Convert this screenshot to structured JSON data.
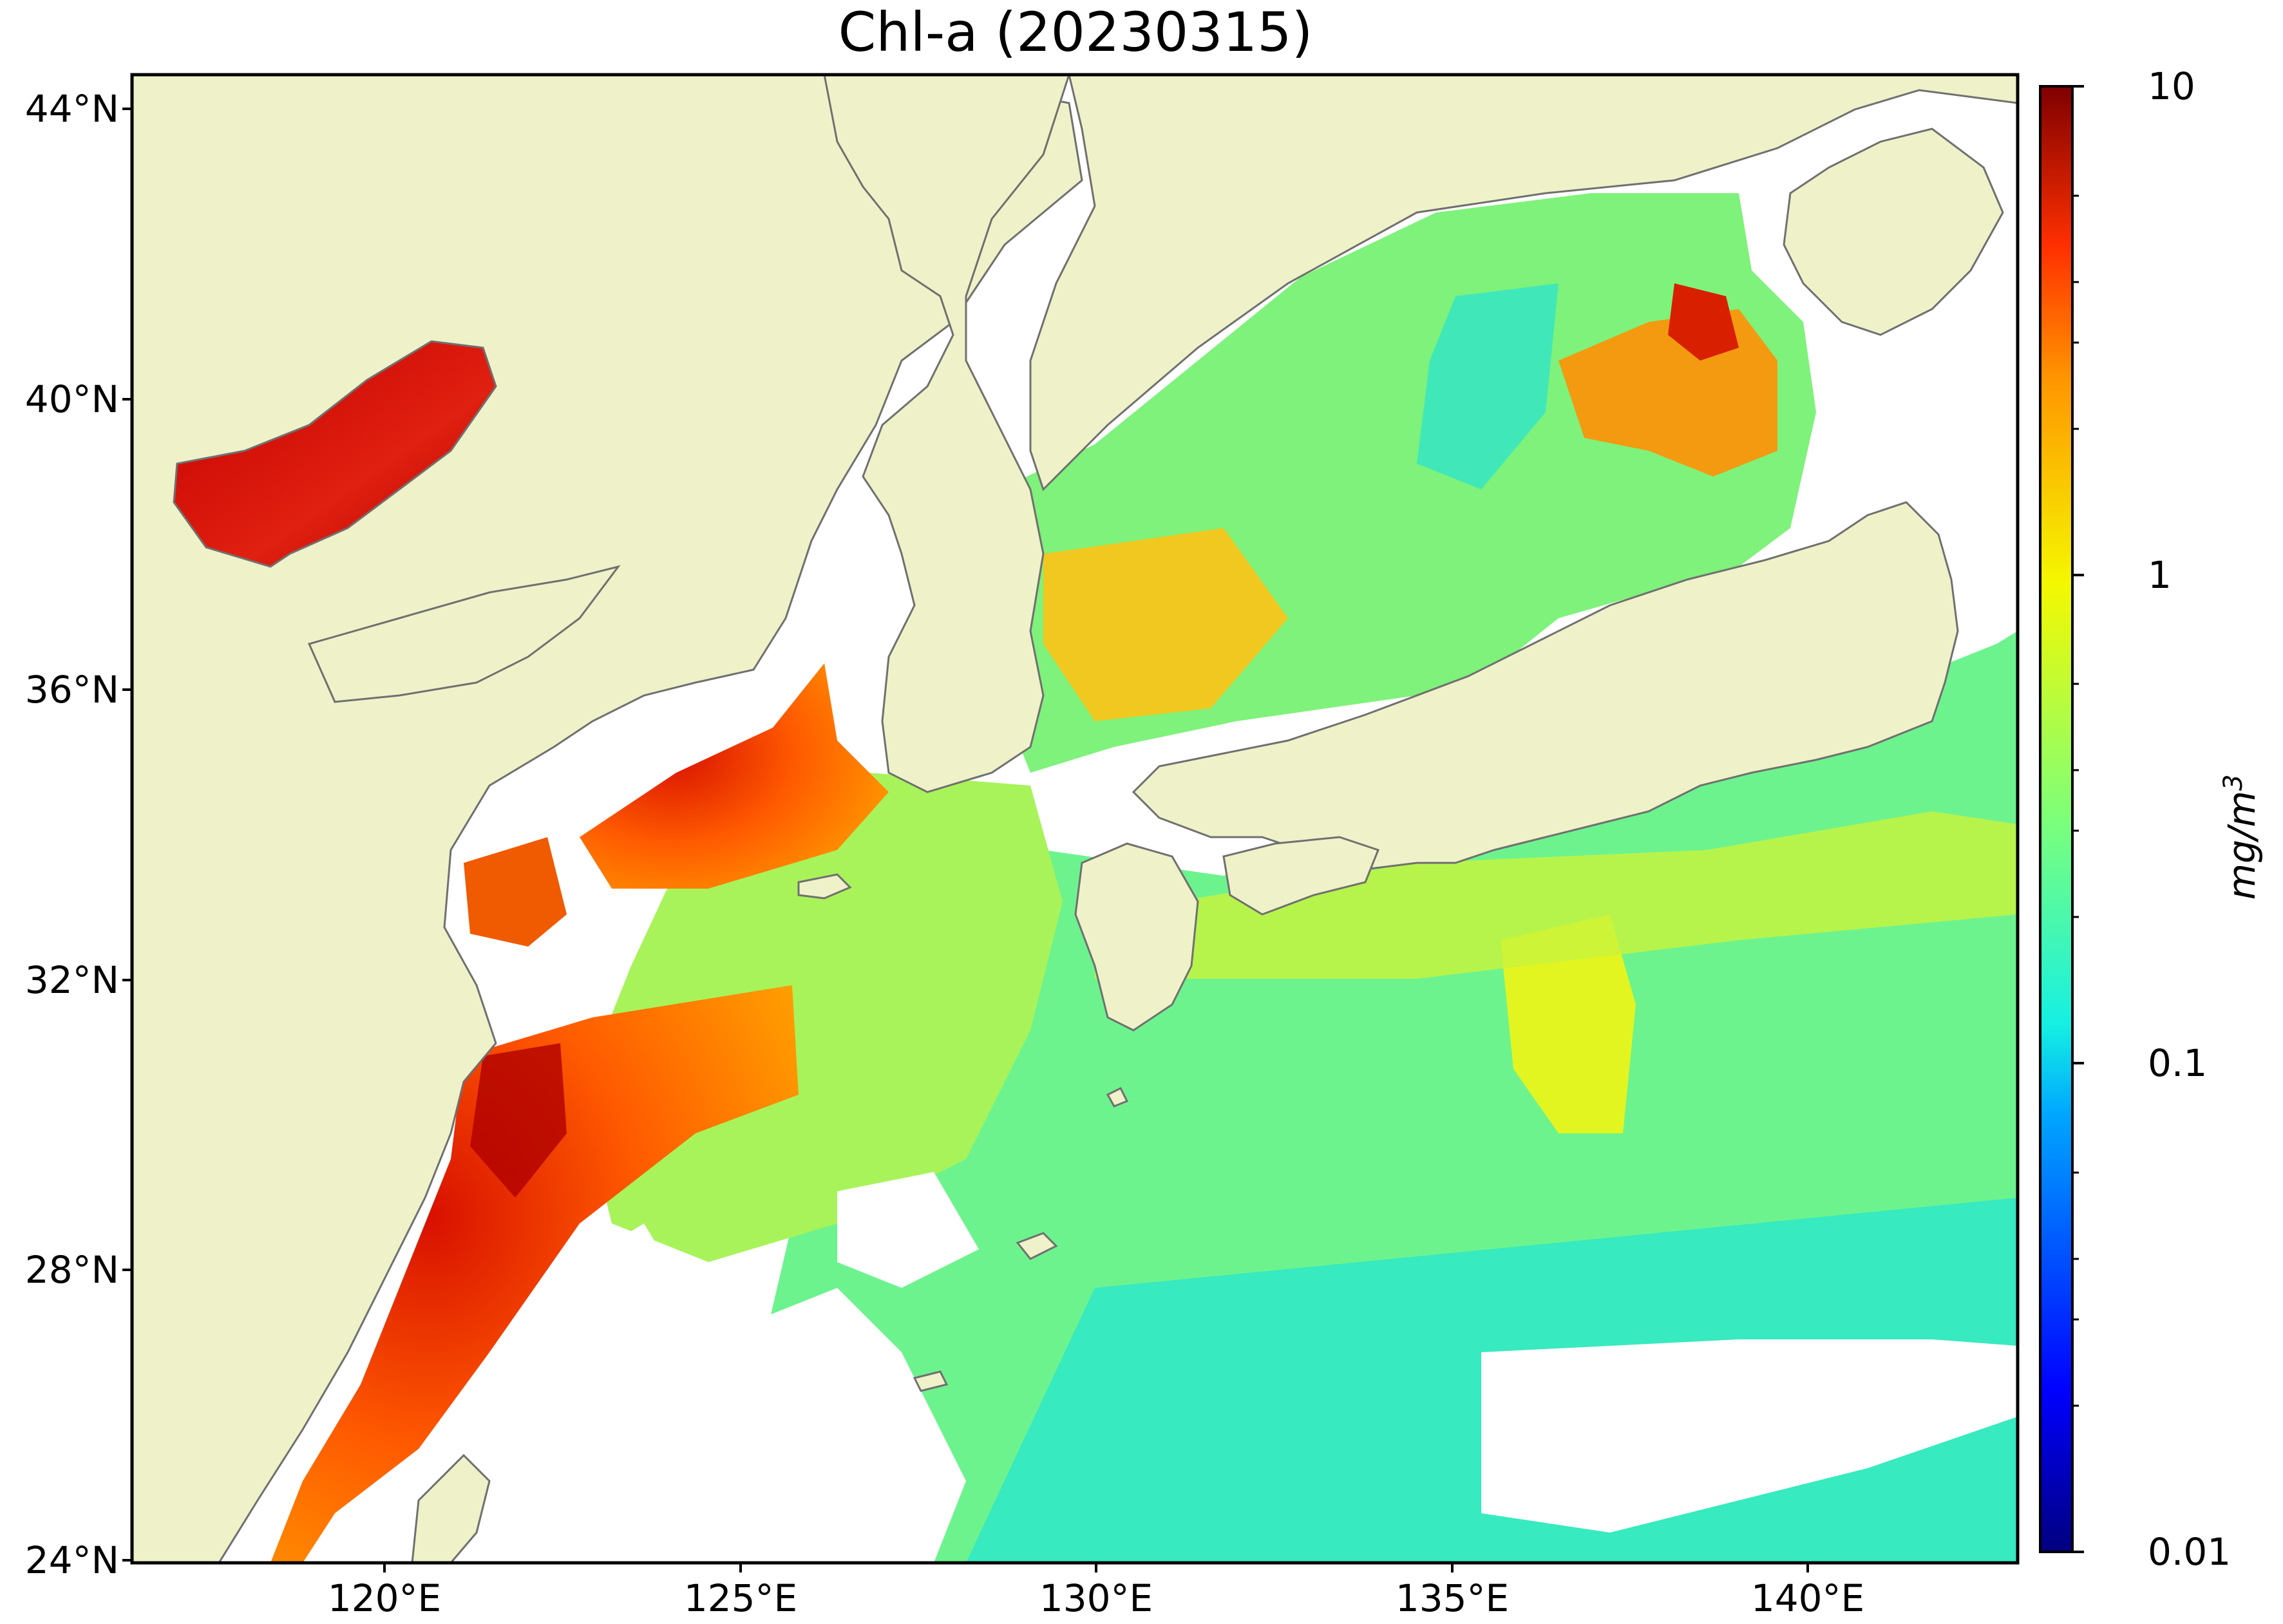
{
  "title": "Chl-a (20230315)",
  "latitude_labels": [
    "44°N",
    "40°N",
    "36°N",
    "32°N",
    "28°N",
    "24°N"
  ],
  "longitude_labels": [
    "120°E",
    "125°E",
    "130°E",
    "135°E",
    "140°E"
  ],
  "colorbar": {
    "unit_base": "mg/m",
    "unit_exp": "3",
    "tick_labels": [
      "10",
      "1",
      "0.1",
      "0.01"
    ],
    "scale": "log",
    "range": [
      0.01,
      10
    ],
    "colormap": "jet"
  },
  "colors": {
    "land": "#eff2c8",
    "no_data": "#ffffff",
    "coastline": "#707070"
  },
  "chart_data": {
    "type": "heatmap",
    "title": "Chl-a (20230315)",
    "x_range_deg_e": [
      116.5,
      143.0
    ],
    "y_range_deg_n": [
      23.9,
      44.4
    ],
    "x_ticks": [
      120,
      125,
      130,
      135,
      140
    ],
    "y_ticks": [
      24,
      28,
      32,
      36,
      40,
      44
    ],
    "colorbar_range": [
      0.01,
      10
    ],
    "colorbar_scale": "log",
    "grid": false
  }
}
